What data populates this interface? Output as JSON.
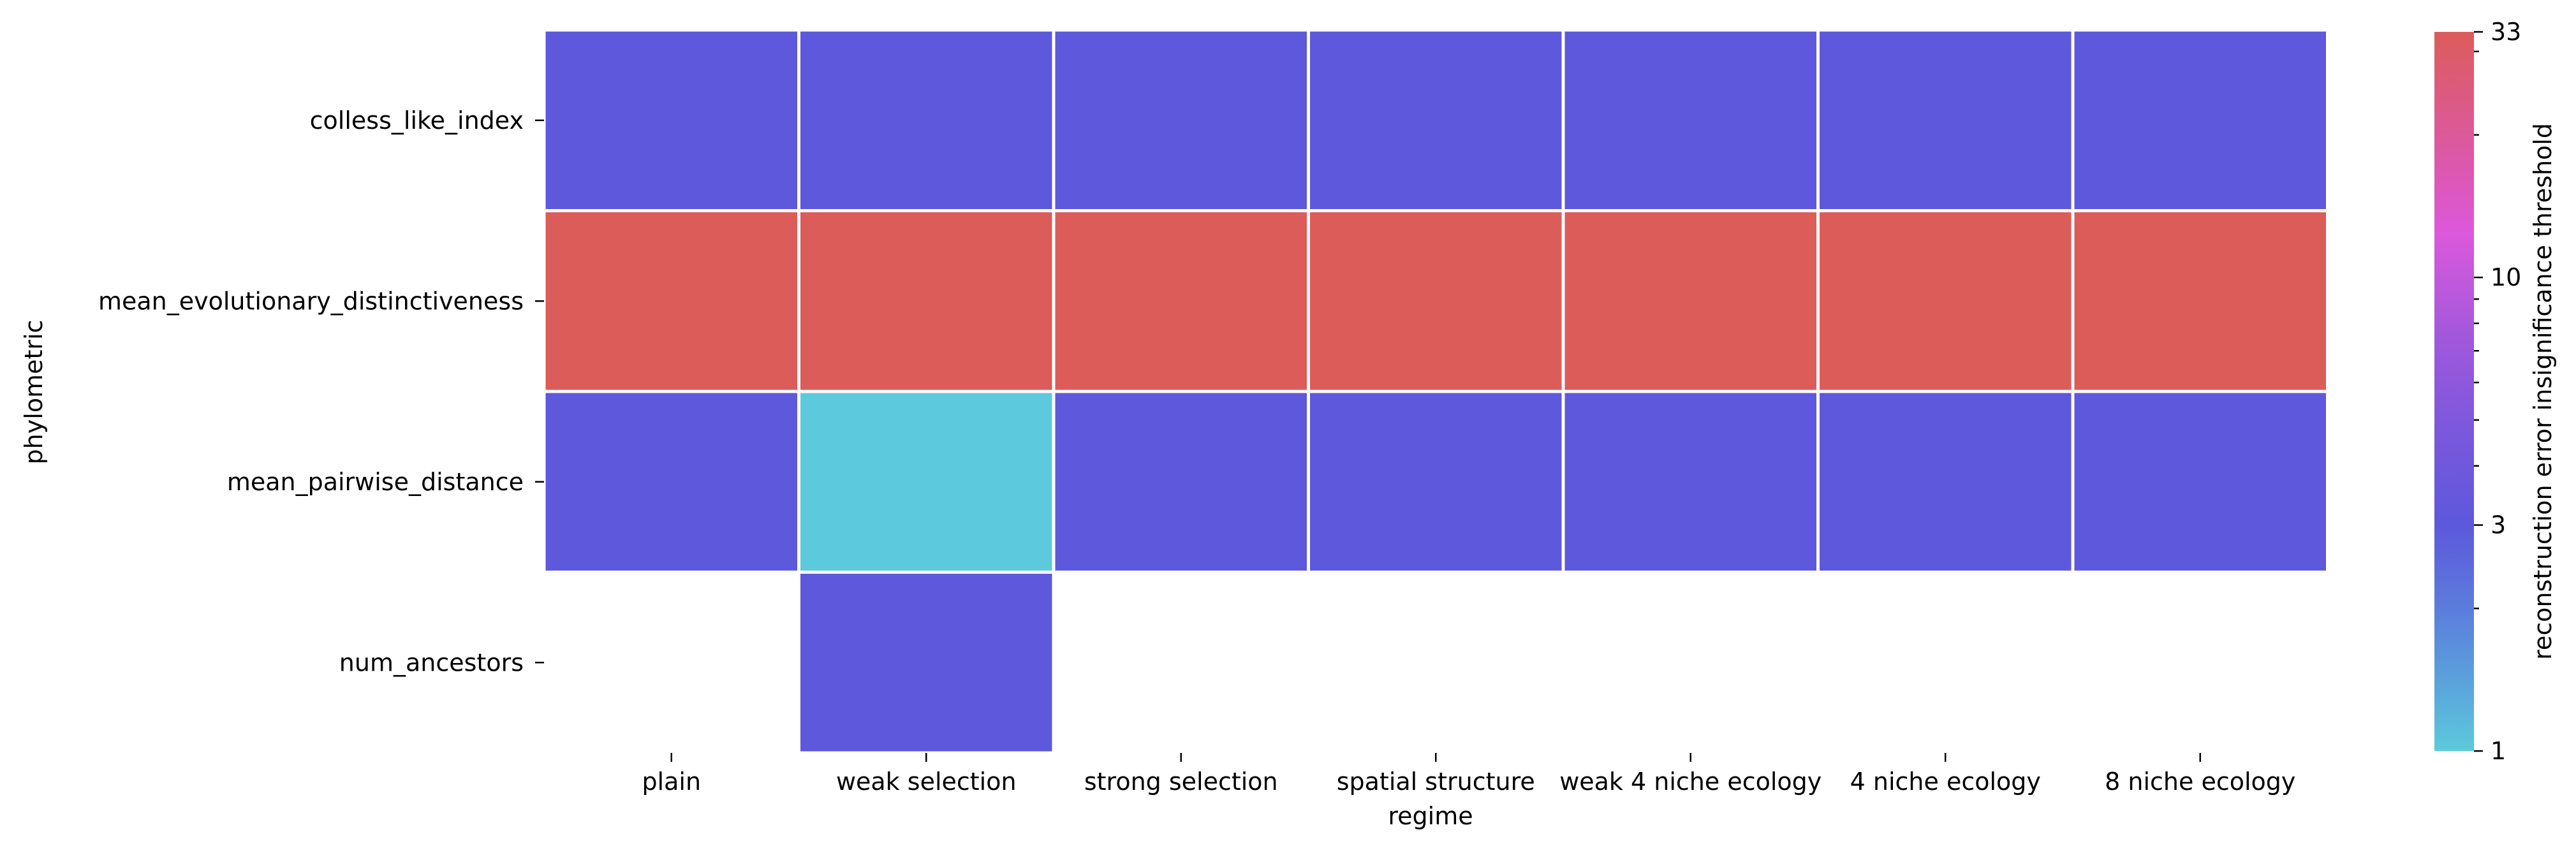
{
  "chart_data": {
    "type": "heatmap",
    "title": "",
    "xlabel": "regime",
    "ylabel": "phylometric",
    "x_categories": [
      "plain",
      "weak selection",
      "strong selection",
      "spatial structure",
      "weak 4 niche ecology",
      "4 niche ecology",
      "8 niche ecology"
    ],
    "y_categories": [
      "colless_like_index",
      "mean_evolutionary_distinctiveness",
      "mean_pairwise_distance",
      "num_ancestors"
    ],
    "values": [
      [
        3,
        3,
        3,
        3,
        3,
        3,
        3
      ],
      [
        33,
        33,
        33,
        33,
        33,
        33,
        33
      ],
      [
        3,
        1,
        3,
        3,
        3,
        3,
        3
      ],
      [
        null,
        3,
        null,
        null,
        null,
        null,
        null
      ]
    ],
    "colorbar": {
      "label": "reconstruction error insignificance threshold",
      "scale": "log",
      "range": [
        1,
        33
      ],
      "ticks": [
        1,
        3,
        10,
        33
      ],
      "tick_labels": [
        "1",
        "3",
        "10",
        "33"
      ],
      "minor_ticks": [
        2,
        4,
        5,
        6,
        7,
        8,
        9,
        20,
        30
      ],
      "colormap": "hls",
      "colors": {
        "low": "#5ccadc",
        "mid": "#5d58dc",
        "high": "#dc5c5a",
        "magenta": "#dc58dc"
      }
    },
    "cell_border_color": "#ffffff",
    "grid": false,
    "legend": "colorbar-right"
  }
}
